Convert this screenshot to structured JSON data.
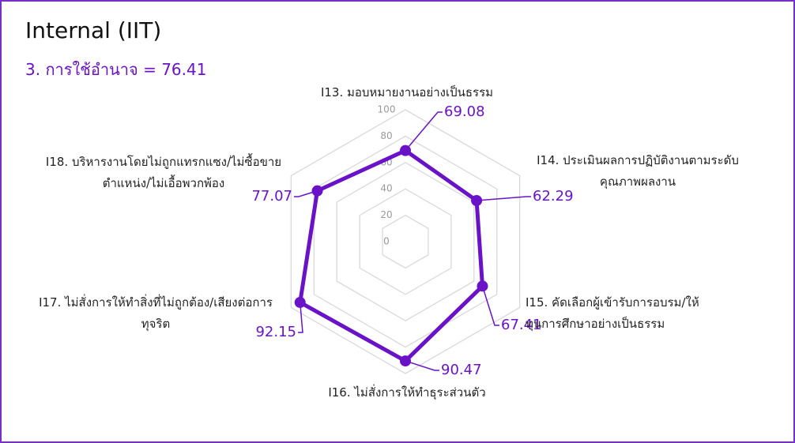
{
  "chart_data": {
    "type": "radar",
    "title": "Internal (IIT)",
    "subtitle": "3. การใช้อำนาจ = 76.41",
    "categories": [
      "I13. มอบหมายงานอย่างเป็นธรรม",
      "I14. ประเมินผลการปฏิบัติงานตามระดับ\nคุณภาพผลงาน",
      "I15. คัดเลือกผู้เข้ารับการอบรม/ให้\nทุนการศึกษาอย่างเป็นธรรม",
      "I16. ไม่สั่งการให้ทำธุระส่วนตัว",
      "I17. ไม่สั่งการให้ทำสิ่งที่ไม่ถูกต้อง/เสียงต่อการ\nทุจริต",
      "I18. บริหารงานโดยไม่ถูกแทรกแซง/ไม่ซื้อขาย\nตำแหน่ง/ไม่เอื้อพวกพ้อง"
    ],
    "values": [
      69.08,
      62.29,
      67.41,
      90.47,
      92.15,
      77.07
    ],
    "color": "#6a12c8",
    "ylim": [
      0,
      100
    ],
    "yticks": [
      0,
      20,
      40,
      60,
      80,
      100
    ],
    "grid": true
  }
}
